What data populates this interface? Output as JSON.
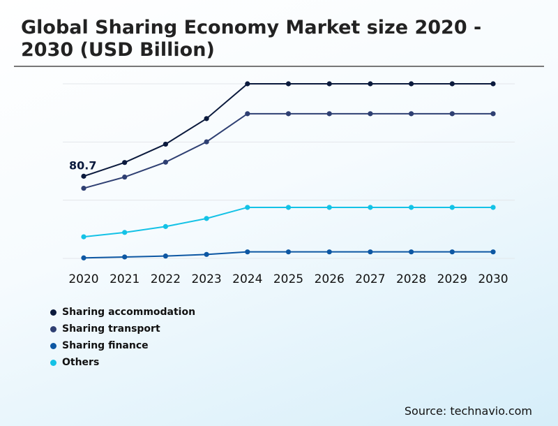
{
  "title": "Global Sharing Economy Market size 2020 - 2030 (USD Billion)",
  "source": "Source: technavio.com",
  "chart_data": {
    "type": "line",
    "title": "Global Sharing Economy Market size 2020 - 2030 (USD Billion)",
    "categories": [
      "2020",
      "2021",
      "2022",
      "2023",
      "2024",
      "2025",
      "2026",
      "2027",
      "2028",
      "2029",
      "2030"
    ],
    "ylim": [
      0,
      171.5
    ],
    "grid": true,
    "legend_position": "bottom-left",
    "annotations": [
      {
        "series": "Sharing accommodation",
        "x": "2020",
        "label": "80.7"
      }
    ],
    "series": [
      {
        "name": "Sharing accommodation",
        "color": "#0b1a3d",
        "values": [
          80.7,
          94.2,
          112.2,
          137.3,
          171.5,
          171.5,
          171.5,
          171.5,
          171.5,
          171.5,
          171.5
        ]
      },
      {
        "name": "Sharing transport",
        "color": "#2e3f72",
        "values": [
          68.9,
          79.9,
          94.5,
          114.5,
          142.1,
          142.1,
          142.1,
          142.1,
          142.1,
          142.1,
          142.1
        ]
      },
      {
        "name": "Sharing finance",
        "color": "#0d57a3",
        "values": [
          0.5,
          1.4,
          2.3,
          3.9,
          6.4,
          6.4,
          6.4,
          6.4,
          6.4,
          6.4,
          6.4
        ]
      },
      {
        "name": "Others",
        "color": "#14c2e6",
        "values": [
          21.2,
          25.5,
          31.3,
          39.2,
          50.1,
          50.1,
          50.1,
          50.1,
          50.1,
          50.1,
          50.1
        ]
      }
    ]
  }
}
